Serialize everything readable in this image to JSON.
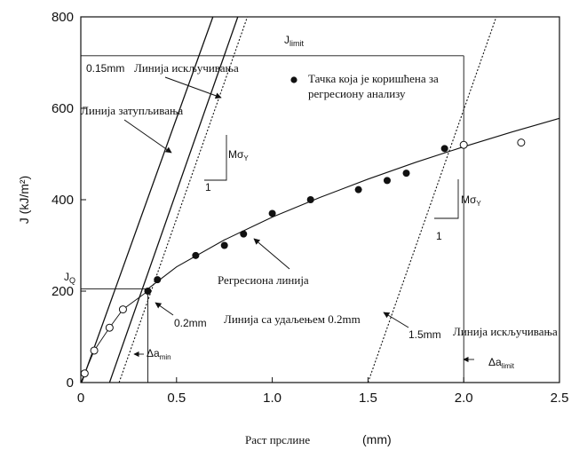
{
  "chart_data": {
    "type": "scatter",
    "xlabel": "Раст прслине",
    "xunit": "(mm)",
    "ylabel": "J (kJ/m²)",
    "xlim": [
      0,
      2.5
    ],
    "ylim": [
      0,
      800
    ],
    "x_ticks": [
      "0",
      "0.5",
      "1.0",
      "1.5",
      "2.0",
      "2.5"
    ],
    "y_ticks": [
      "0",
      "200",
      "400",
      "600",
      "800"
    ],
    "filled_points": {
      "x": [
        0.35,
        0.4,
        0.6,
        0.75,
        0.85,
        1.0,
        1.2,
        1.45,
        1.6,
        1.7,
        1.9
      ],
      "y": [
        200,
        225,
        278,
        300,
        325,
        370,
        400,
        422,
        442,
        458,
        512
      ]
    },
    "open_points": {
      "x": [
        0.02,
        0.07,
        0.15,
        0.22,
        2.0,
        2.3
      ],
      "y": [
        20,
        70,
        120,
        160,
        520,
        525
      ]
    },
    "regression_line": {
      "x": [
        0.35,
        0.5,
        0.75,
        1.0,
        1.25,
        1.5,
        1.75,
        2.0,
        2.25,
        2.5
      ],
      "y": [
        205,
        253,
        312,
        362,
        405,
        445,
        482,
        516,
        548,
        578
      ]
    },
    "guide_lines": {
      "blunting": [
        [
          0.0,
          -5
        ],
        [
          0.69,
          800
        ]
      ],
      "offset_015": [
        [
          0.15,
          0
        ],
        [
          0.82,
          800
        ]
      ],
      "offset_02": [
        [
          0.2,
          0
        ],
        [
          0.87,
          800
        ]
      ],
      "offset_15": [
        [
          1.5,
          0
        ],
        [
          2.17,
          800
        ]
      ]
    },
    "j_limit": 715,
    "j_q": 205,
    "da_min": 0.35,
    "da_limit": 2.0,
    "annotations": {
      "j_limit": "J",
      "j_limit_sub": "limit",
      "j_q": "J",
      "j_q_sub": "Q",
      "exclusion_015": "0.15mm",
      "exclusion_015_label": "Линија искључивања",
      "legend_marker_text": "Тачка која је коришћена за",
      "legend_marker_text2": "регресиону анализу",
      "blunting": "Линија затупљивања",
      "m_sigma_upper": "Mσ",
      "m_sigma_upper_sub": "Y",
      "one_upper": "1",
      "m_sigma_lower": "Mσ",
      "m_sigma_lower_sub": "Y",
      "one_lower": "1",
      "regression": "Регресиона линија",
      "offset_02": "0.2mm",
      "offset_02_label": "Линија са удаљењем 0.2mm",
      "exclusion_15": "1.5mm",
      "exclusion_15_label": "Линија искључивања",
      "da_min": "Δa",
      "da_min_sub": "min",
      "da_limit": "Δa",
      "da_limit_sub": "limit"
    }
  }
}
